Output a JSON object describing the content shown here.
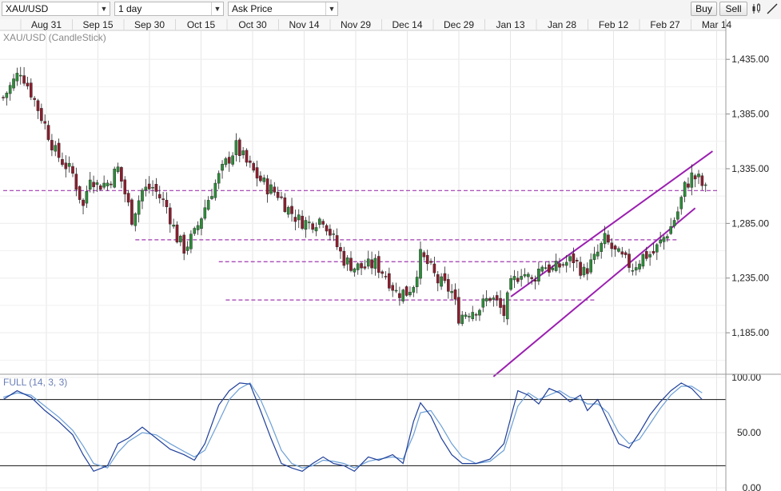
{
  "toolbar": {
    "symbol": "XAU/USD",
    "timeframe": "1 day",
    "price_type": "Ask Price",
    "buy_label": "Buy",
    "sell_label": "Sell"
  },
  "chart_data": [
    {
      "type": "candlestick",
      "title": "XAU/USD (CandleStick)",
      "x_tick_labels": [
        "Aug 31",
        "Sep 15",
        "Sep 30",
        "Oct 15",
        "Oct 30",
        "Nov 14",
        "Nov 29",
        "Dec 14",
        "Dec 29",
        "Jan 13",
        "Jan 28",
        "Feb 12",
        "Feb 27",
        "Mar 14"
      ],
      "y_tick_labels": [
        "1,435.00",
        "1,385.00",
        "1,335.00",
        "1,285.00",
        "1,235.00",
        "1,185.00"
      ],
      "ylim": [
        1150,
        1460
      ],
      "grid": true,
      "close_path": [
        [
          0,
          1400
        ],
        [
          5,
          1425
        ],
        [
          8,
          1405
        ],
        [
          12,
          1375
        ],
        [
          15,
          1350
        ],
        [
          20,
          1330
        ],
        [
          23,
          1300
        ],
        [
          25,
          1330
        ],
        [
          27,
          1320
        ],
        [
          30,
          1322
        ],
        [
          33,
          1335
        ],
        [
          37,
          1290
        ],
        [
          40,
          1315
        ],
        [
          43,
          1318
        ],
        [
          47,
          1300
        ],
        [
          50,
          1272
        ],
        [
          52,
          1262
        ],
        [
          55,
          1275
        ],
        [
          58,
          1300
        ],
        [
          60,
          1315
        ],
        [
          64,
          1340
        ],
        [
          67,
          1355
        ],
        [
          70,
          1340
        ],
        [
          73,
          1328
        ],
        [
          76,
          1318
        ],
        [
          79,
          1312
        ],
        [
          82,
          1298
        ],
        [
          85,
          1288
        ],
        [
          88,
          1285
        ],
        [
          92,
          1290
        ],
        [
          95,
          1270
        ],
        [
          98,
          1252
        ],
        [
          101,
          1245
        ],
        [
          104,
          1245
        ],
        [
          107,
          1248
        ],
        [
          110,
          1238
        ],
        [
          113,
          1222
        ],
        [
          116,
          1222
        ],
        [
          118,
          1230
        ],
        [
          120,
          1255
        ],
        [
          122,
          1248
        ],
        [
          125,
          1232
        ],
        [
          127,
          1228
        ],
        [
          129,
          1222
        ],
        [
          131,
          1200
        ],
        [
          134,
          1205
        ],
        [
          137,
          1208
        ],
        [
          140,
          1218
        ],
        [
          142,
          1212
        ],
        [
          144,
          1202
        ],
        [
          146,
          1228
        ],
        [
          149,
          1242
        ],
        [
          152,
          1232
        ],
        [
          155,
          1248
        ],
        [
          158,
          1242
        ],
        [
          161,
          1248
        ],
        [
          164,
          1252
        ],
        [
          167,
          1240
        ],
        [
          170,
          1252
        ],
        [
          173,
          1270
        ],
        [
          176,
          1258
        ],
        [
          179,
          1250
        ],
        [
          181,
          1245
        ],
        [
          184,
          1255
        ],
        [
          187,
          1258
        ],
        [
          190,
          1272
        ],
        [
          192,
          1282
        ],
        [
          194,
          1296
        ],
        [
          196,
          1318
        ],
        [
          198,
          1328
        ],
        [
          200,
          1325
        ],
        [
          202,
          1315
        ]
      ],
      "stoch_x_at_bar_0": 0,
      "horizontal_levels": [
        {
          "y": 1315,
          "from_bar": 0,
          "to_bar": 206
        },
        {
          "y": 1270,
          "from_bar": 38,
          "to_bar": 194
        },
        {
          "y": 1250,
          "from_bar": 62,
          "to_bar": 160
        },
        {
          "y": 1215,
          "from_bar": 64,
          "to_bar": 170
        }
      ],
      "trend_channel": [
        {
          "from": [
            146,
            1218
          ],
          "to": [
            204,
            1351
          ]
        },
        {
          "from": [
            141,
            1145
          ],
          "to": [
            199,
            1299
          ]
        }
      ],
      "colors": {
        "up": "#2e8b3a",
        "down": "#8b1e2e",
        "channel": "#9b1fb0",
        "level": "#a03ab0",
        "k_line": "#1f3f9a",
        "d_line": "#6c9fd6"
      }
    },
    {
      "type": "line",
      "title": "FULL (14, 3, 3)",
      "y_tick_labels": [
        "100.00",
        "50.00",
        "0.00"
      ],
      "ylim": [
        0,
        100
      ],
      "levels": [
        80,
        20
      ],
      "series_k": [
        [
          0,
          80
        ],
        [
          4,
          88
        ],
        [
          8,
          82
        ],
        [
          12,
          70
        ],
        [
          16,
          60
        ],
        [
          20,
          48
        ],
        [
          23,
          30
        ],
        [
          26,
          15
        ],
        [
          30,
          20
        ],
        [
          33,
          40
        ],
        [
          36,
          45
        ],
        [
          40,
          55
        ],
        [
          44,
          45
        ],
        [
          48,
          35
        ],
        [
          52,
          30
        ],
        [
          55,
          25
        ],
        [
          58,
          40
        ],
        [
          62,
          75
        ],
        [
          65,
          88
        ],
        [
          68,
          95
        ],
        [
          71,
          94
        ],
        [
          74,
          70
        ],
        [
          77,
          45
        ],
        [
          80,
          22
        ],
        [
          83,
          18
        ],
        [
          86,
          15
        ],
        [
          89,
          22
        ],
        [
          92,
          28
        ],
        [
          95,
          22
        ],
        [
          98,
          20
        ],
        [
          101,
          15
        ],
        [
          105,
          28
        ],
        [
          108,
          25
        ],
        [
          112,
          30
        ],
        [
          115,
          22
        ],
        [
          118,
          60
        ],
        [
          120,
          77
        ],
        [
          123,
          65
        ],
        [
          126,
          45
        ],
        [
          129,
          30
        ],
        [
          132,
          22
        ],
        [
          136,
          22
        ],
        [
          140,
          26
        ],
        [
          144,
          40
        ],
        [
          148,
          88
        ],
        [
          151,
          84
        ],
        [
          154,
          76
        ],
        [
          157,
          90
        ],
        [
          160,
          86
        ],
        [
          163,
          78
        ],
        [
          166,
          84
        ],
        [
          168,
          70
        ],
        [
          171,
          80
        ],
        [
          174,
          60
        ],
        [
          177,
          40
        ],
        [
          180,
          36
        ],
        [
          183,
          50
        ],
        [
          186,
          66
        ],
        [
          189,
          78
        ],
        [
          192,
          88
        ],
        [
          195,
          95
        ],
        [
          198,
          90
        ],
        [
          201,
          80
        ]
      ],
      "series_d": [
        [
          0,
          82
        ],
        [
          4,
          86
        ],
        [
          8,
          84
        ],
        [
          12,
          74
        ],
        [
          16,
          64
        ],
        [
          20,
          52
        ],
        [
          23,
          38
        ],
        [
          26,
          22
        ],
        [
          30,
          18
        ],
        [
          33,
          32
        ],
        [
          36,
          42
        ],
        [
          40,
          50
        ],
        [
          44,
          48
        ],
        [
          48,
          40
        ],
        [
          52,
          33
        ],
        [
          55,
          28
        ],
        [
          58,
          34
        ],
        [
          62,
          60
        ],
        [
          65,
          80
        ],
        [
          68,
          90
        ],
        [
          71,
          95
        ],
        [
          74,
          80
        ],
        [
          77,
          58
        ],
        [
          80,
          34
        ],
        [
          83,
          22
        ],
        [
          86,
          18
        ],
        [
          89,
          20
        ],
        [
          92,
          25
        ],
        [
          95,
          24
        ],
        [
          98,
          22
        ],
        [
          101,
          18
        ],
        [
          105,
          24
        ],
        [
          108,
          26
        ],
        [
          112,
          28
        ],
        [
          115,
          26
        ],
        [
          118,
          48
        ],
        [
          120,
          68
        ],
        [
          123,
          70
        ],
        [
          126,
          56
        ],
        [
          129,
          40
        ],
        [
          132,
          28
        ],
        [
          136,
          22
        ],
        [
          140,
          24
        ],
        [
          144,
          34
        ],
        [
          148,
          74
        ],
        [
          151,
          86
        ],
        [
          154,
          80
        ],
        [
          157,
          84
        ],
        [
          160,
          88
        ],
        [
          163,
          82
        ],
        [
          166,
          80
        ],
        [
          168,
          76
        ],
        [
          171,
          76
        ],
        [
          174,
          68
        ],
        [
          177,
          50
        ],
        [
          180,
          40
        ],
        [
          183,
          44
        ],
        [
          186,
          58
        ],
        [
          189,
          72
        ],
        [
          192,
          84
        ],
        [
          195,
          92
        ],
        [
          198,
          92
        ],
        [
          201,
          86
        ]
      ]
    }
  ]
}
